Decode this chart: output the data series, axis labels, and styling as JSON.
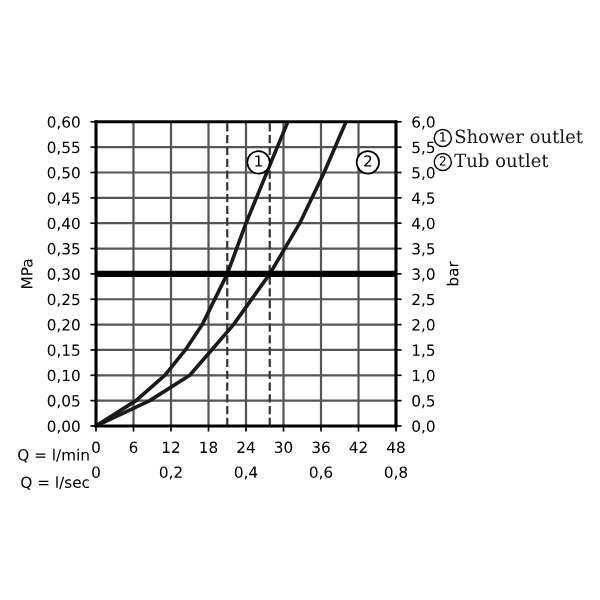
{
  "chart_data": {
    "type": "line",
    "xlabel": "Q = l/min",
    "x2label": "Q = l/sec",
    "ylabel": "MPa",
    "y2label": "bar",
    "series": [
      {
        "name": "Shower outlet",
        "color": "#1a1a1a",
        "x": [
          0,
          6.4,
          11,
          14.3,
          17,
          21,
          24,
          29,
          30.7
        ],
        "values": [
          0,
          0.05,
          0.1,
          0.15,
          0.2,
          0.3,
          0.4,
          0.55,
          0.6
        ]
      },
      {
        "name": "Tub outlet",
        "color": "#1a1a1a",
        "x": [
          0,
          8.6,
          15,
          18.5,
          22,
          27.8,
          32.6,
          36.5,
          40
        ],
        "values": [
          0,
          0.05,
          0.1,
          0.15,
          0.2,
          0.3,
          0.4,
          0.5,
          0.6
        ]
      }
    ],
    "annotations": [
      {
        "text": "1",
        "x": 26,
        "y": 0.52
      },
      {
        "text": "2",
        "x": 43.5,
        "y": 0.52
      }
    ],
    "ref_lines": [
      {
        "axis": "y",
        "value": 0.3,
        "color": "#000000",
        "line_style": "solid"
      },
      {
        "axis": "x",
        "value": 21,
        "color": "#333333",
        "line_style": "dashed"
      },
      {
        "axis": "x",
        "value": 27.8,
        "color": "#333333",
        "line_style": "dashed"
      }
    ],
    "xlim": [
      0,
      48
    ],
    "xticks": [
      0,
      6,
      12,
      18,
      24,
      30,
      36,
      42,
      48
    ],
    "x2lim": [
      0,
      0.8
    ],
    "x2ticks": [
      0,
      {
        "value": 0.2,
        "label": "0,2"
      },
      {
        "value": 0.4,
        "label": "0,4"
      },
      {
        "value": 0.6,
        "label": "0,6"
      },
      {
        "value": 0.8,
        "label": "0,8"
      }
    ],
    "ylim": [
      0,
      0.6
    ],
    "yticks": [
      {
        "value": 0,
        "label": "0,00"
      },
      {
        "value": 0.05,
        "label": "0,05"
      },
      {
        "value": 0.1,
        "label": "0,10"
      },
      {
        "value": 0.15,
        "label": "0,15"
      },
      {
        "value": 0.2,
        "label": "0,20"
      },
      {
        "value": 0.25,
        "label": "0,25"
      },
      {
        "value": 0.3,
        "label": "0,30"
      },
      {
        "value": 0.35,
        "label": "0,35"
      },
      {
        "value": 0.4,
        "label": "0,40"
      },
      {
        "value": 0.45,
        "label": "0,45"
      },
      {
        "value": 0.5,
        "label": "0,50"
      },
      {
        "value": 0.55,
        "label": "0,55"
      },
      {
        "value": 0.6,
        "label": "0,60"
      }
    ],
    "y2lim": [
      0,
      6
    ],
    "y2ticks": [
      {
        "value": 0,
        "label": "0,0"
      },
      {
        "value": 0.5,
        "label": "0,5"
      },
      {
        "value": 1,
        "label": "1,0"
      },
      {
        "value": 1.5,
        "label": "1,5"
      },
      {
        "value": 2,
        "label": "2,0"
      },
      {
        "value": 2.5,
        "label": "2,5"
      },
      {
        "value": 3,
        "label": "3,0"
      },
      {
        "value": 3.5,
        "label": "3,5"
      },
      {
        "value": 4,
        "label": "4,0"
      },
      {
        "value": 4.5,
        "label": "4,5"
      },
      {
        "value": 5,
        "label": "5,0"
      },
      {
        "value": 5.5,
        "label": "5,5"
      },
      {
        "value": 6,
        "label": "6,0"
      }
    ],
    "grid": true,
    "legend": "right",
    "marker": "none",
    "line_style": "solid"
  }
}
